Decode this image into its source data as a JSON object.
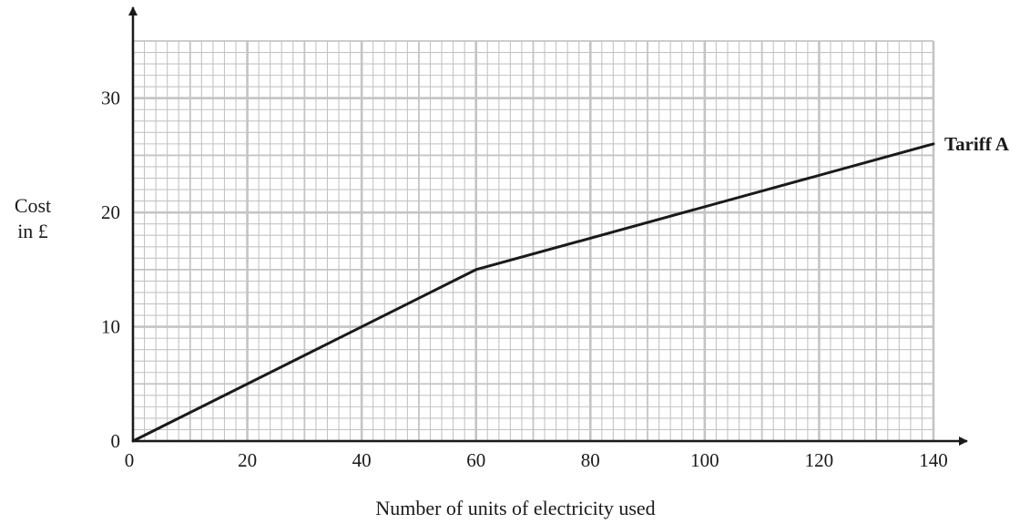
{
  "chart_data": {
    "type": "line",
    "xlabel": "Number of units of electricity used",
    "ylabel": [
      "Cost",
      "in £"
    ],
    "xlim": [
      0,
      140
    ],
    "ylim": [
      0,
      35
    ],
    "x_ticks": [
      0,
      20,
      40,
      60,
      80,
      100,
      120,
      140
    ],
    "y_ticks": [
      0,
      10,
      20,
      30
    ],
    "x_tick_labels": [
      "0",
      "20",
      "40",
      "60",
      "80",
      "100",
      "120",
      "140"
    ],
    "y_tick_labels": [
      "0",
      "10",
      "20",
      "30"
    ],
    "grid": true,
    "series": [
      {
        "name": "Tariff A",
        "x": [
          0,
          60,
          140
        ],
        "y": [
          0,
          15,
          26
        ]
      }
    ]
  },
  "colors": {
    "grid": "#c4c4c4",
    "line": "#1a1a1a"
  }
}
